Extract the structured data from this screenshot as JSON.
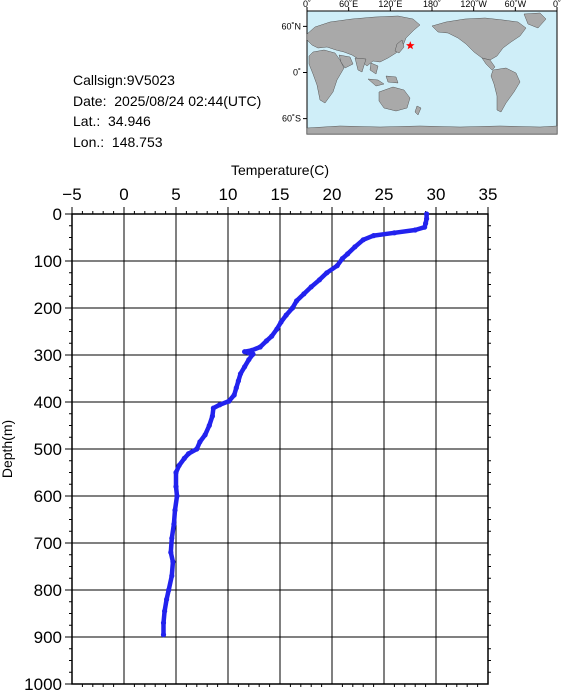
{
  "info": {
    "callsign": "Callsign:9V5023",
    "date": "Date:  2025/08/24 02:44(UTC)",
    "lat": "Lat.:  34.946",
    "lon": "Lon.:  148.753"
  },
  "map": {
    "top_labels": [
      "0˚",
      "60˚E",
      "120˚E",
      "180˚",
      "120˚W",
      "60˚W",
      "0˚"
    ],
    "lat_labels": [
      "60˚N",
      "0˚",
      "60˚S"
    ],
    "marker": {
      "lat": 34.946,
      "lon": 148.753
    },
    "colors": {
      "ocean": "#cfeef8",
      "land": "#a9a9a9",
      "marker": "#ff0000"
    }
  },
  "chart_data": {
    "type": "line",
    "xlabel": "Temperature(C)",
    "ylabel": "Depth(m)",
    "xlim": [
      -5,
      35
    ],
    "ylim": [
      0,
      1000
    ],
    "x_ticks": [
      "−5",
      "0",
      "5",
      "10",
      "15",
      "20",
      "25",
      "30",
      "35"
    ],
    "y_ticks": [
      "0",
      "100",
      "200",
      "300",
      "400",
      "500",
      "600",
      "700",
      "800",
      "900",
      "1000"
    ],
    "grid": true,
    "series": [
      {
        "color": "#2222ee",
        "points": [
          [
            29.1,
            0
          ],
          [
            29.1,
            10
          ],
          [
            29.0,
            20
          ],
          [
            28.9,
            28
          ],
          [
            28.0,
            34
          ],
          [
            26.0,
            40
          ],
          [
            24.0,
            46
          ],
          [
            23.0,
            55
          ],
          [
            22.2,
            70
          ],
          [
            21.5,
            85
          ],
          [
            21.0,
            95
          ],
          [
            20.5,
            110
          ],
          [
            19.5,
            125
          ],
          [
            18.8,
            140
          ],
          [
            18.0,
            155
          ],
          [
            17.3,
            170
          ],
          [
            16.6,
            185
          ],
          [
            16.2,
            200
          ],
          [
            15.6,
            215
          ],
          [
            15.1,
            230
          ],
          [
            14.7,
            245
          ],
          [
            14.2,
            260
          ],
          [
            13.7,
            270
          ],
          [
            13.1,
            283
          ],
          [
            12.3,
            290
          ],
          [
            11.6,
            293
          ],
          [
            12.4,
            298
          ],
          [
            12.0,
            310
          ],
          [
            11.6,
            325
          ],
          [
            11.2,
            340
          ],
          [
            11.0,
            355
          ],
          [
            10.8,
            370
          ],
          [
            10.6,
            385
          ],
          [
            10.1,
            398
          ],
          [
            9.2,
            406
          ],
          [
            8.6,
            413
          ],
          [
            8.5,
            430
          ],
          [
            8.2,
            450
          ],
          [
            7.8,
            470
          ],
          [
            7.3,
            485
          ],
          [
            7.0,
            500
          ],
          [
            6.2,
            510
          ],
          [
            5.8,
            520
          ],
          [
            5.3,
            535
          ],
          [
            5.0,
            550
          ],
          [
            5.0,
            580
          ],
          [
            5.1,
            600
          ],
          [
            4.9,
            630
          ],
          [
            4.8,
            660
          ],
          [
            4.6,
            690
          ],
          [
            4.5,
            720
          ],
          [
            4.7,
            740
          ],
          [
            4.6,
            770
          ],
          [
            4.3,
            800
          ],
          [
            4.1,
            820
          ],
          [
            3.9,
            845
          ],
          [
            3.8,
            870
          ],
          [
            3.8,
            895
          ]
        ]
      }
    ]
  }
}
